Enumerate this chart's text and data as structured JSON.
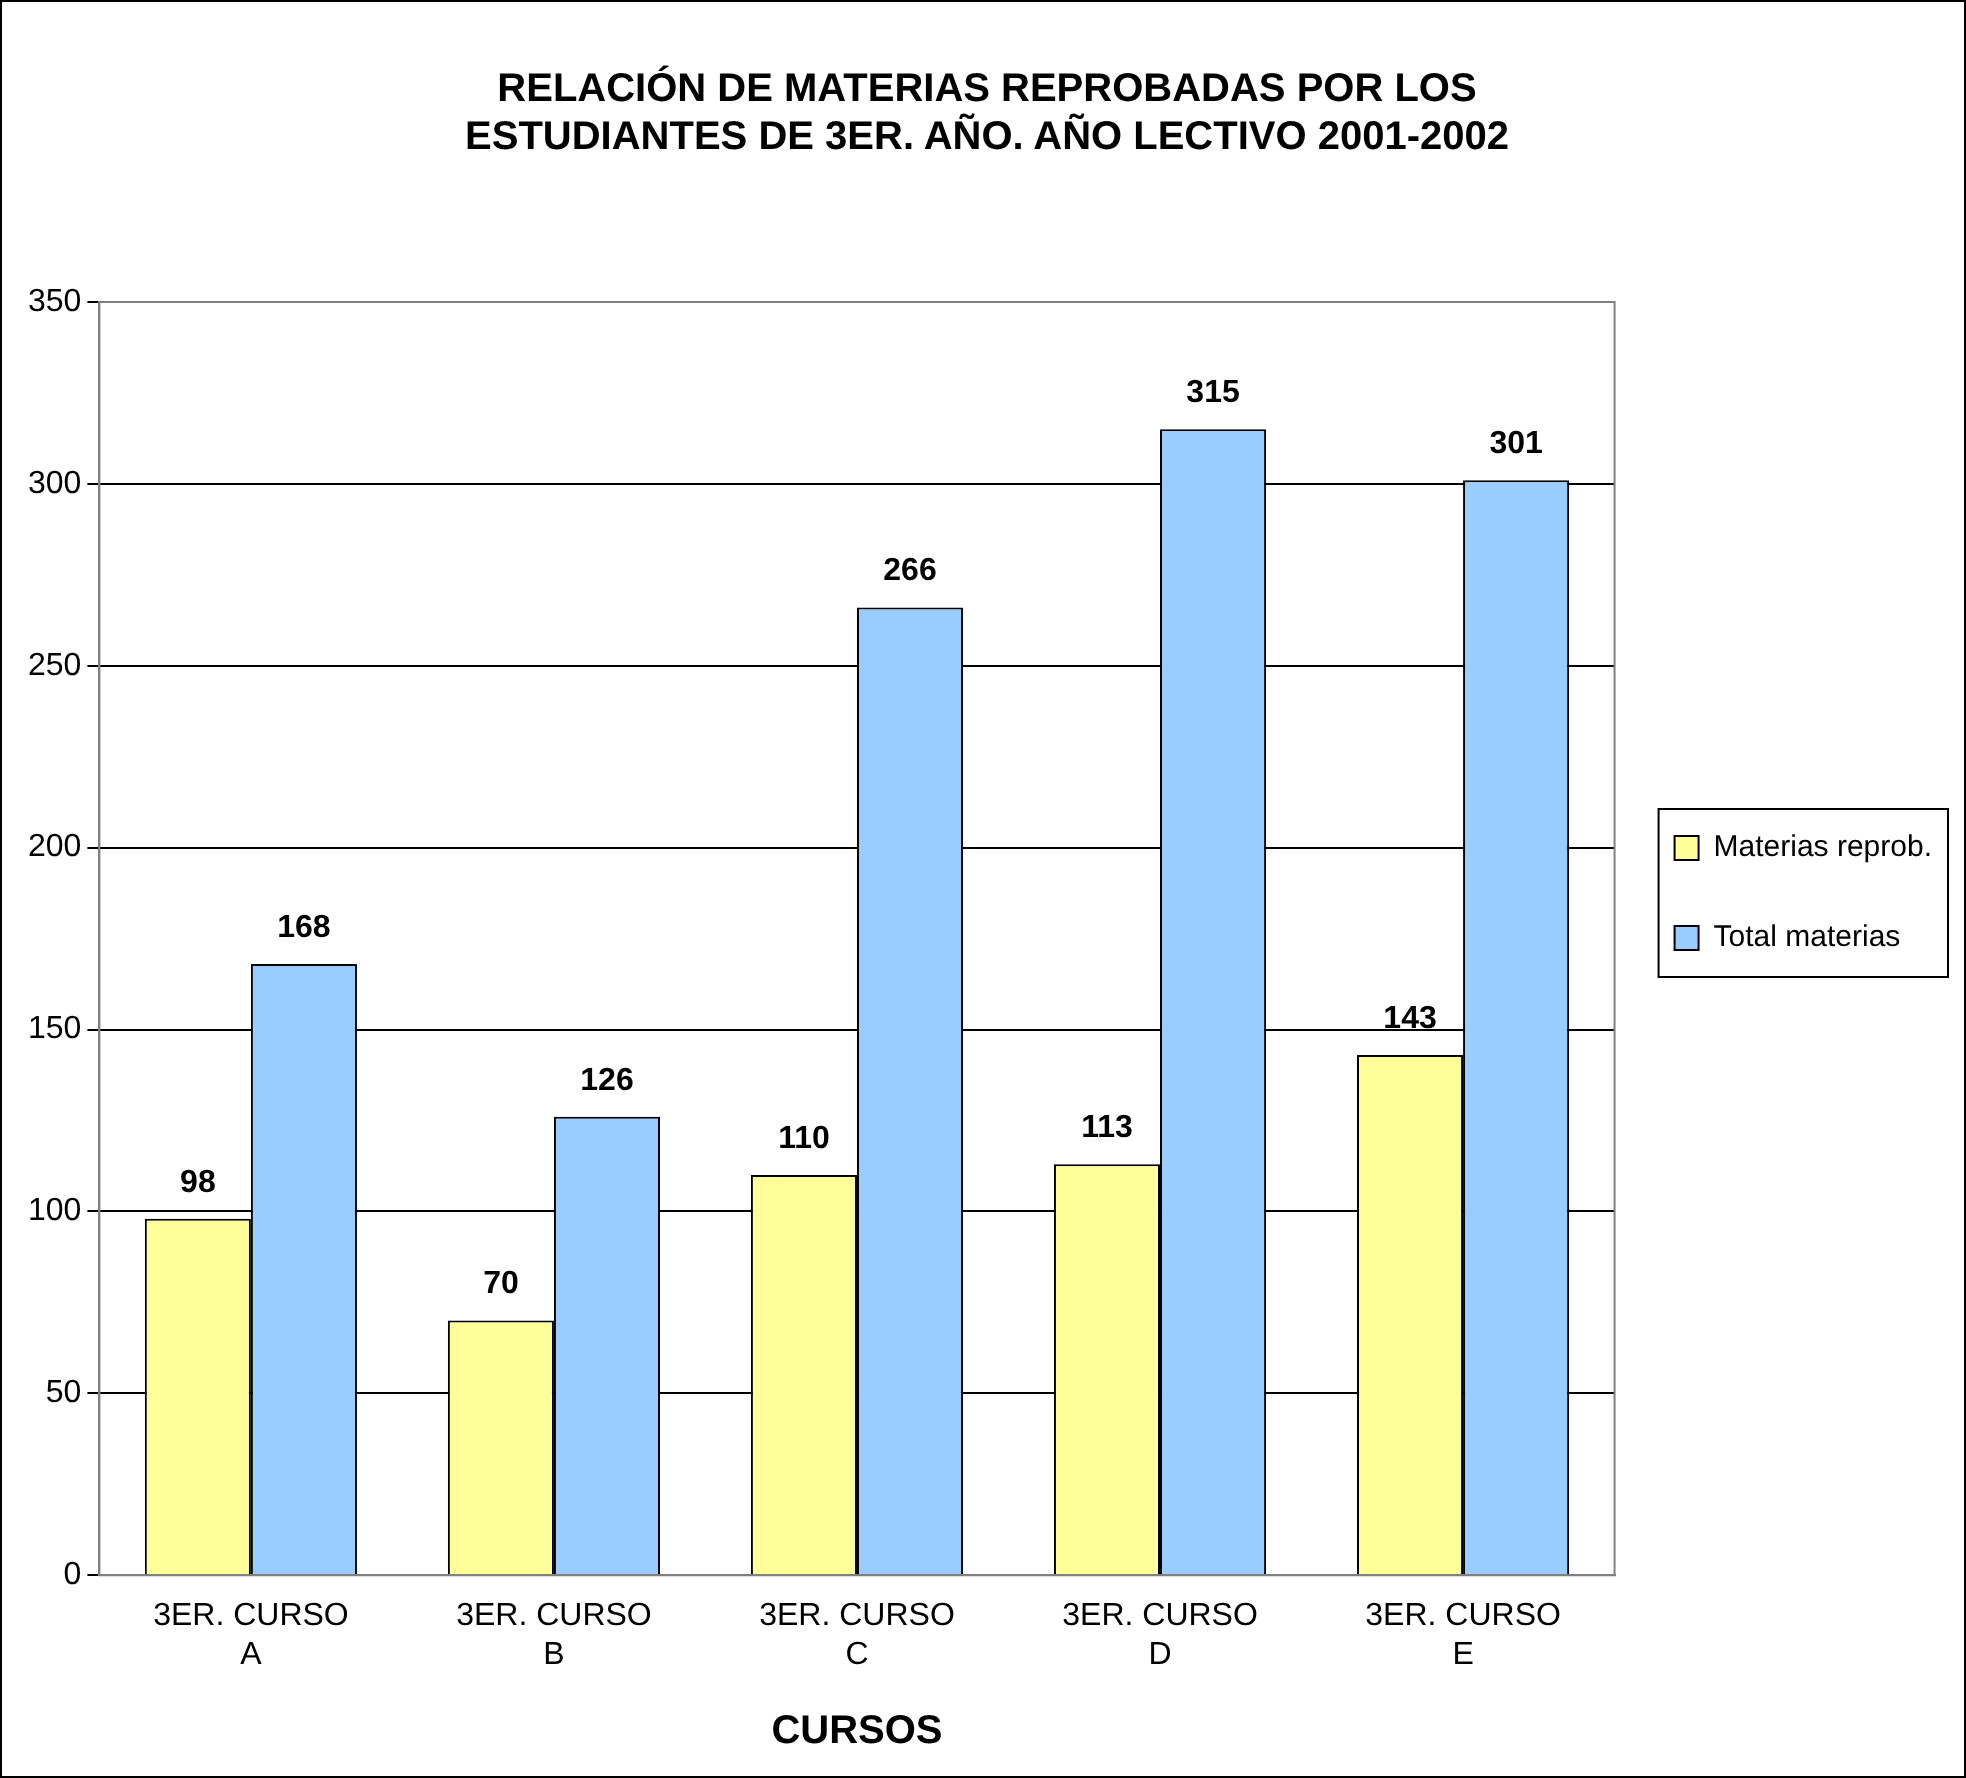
{
  "chart_data": {
    "type": "bar",
    "title": "RELACIÓN DE MATERIAS REPROBADAS POR LOS ESTUDIANTES DE 3ER. AÑO. AÑO LECTIVO 2001-2002",
    "xlabel": "CURSOS",
    "categories": [
      "3ER. CURSO A",
      "3ER. CURSO B",
      "3ER. CURSO C",
      "3ER. CURSO D",
      "3ER. CURSO E"
    ],
    "series": [
      {
        "name": "Materias reprob.",
        "color": "#ffff99",
        "values": [
          98,
          70,
          110,
          113,
          143
        ]
      },
      {
        "name": "Total materias",
        "color": "#99ccff",
        "values": [
          168,
          126,
          266,
          315,
          301
        ]
      }
    ],
    "ylim": [
      0,
      350
    ],
    "yticks": [
      0,
      50,
      100,
      150,
      200,
      250,
      300,
      350
    ],
    "grid": "y",
    "legend": "right",
    "data_labels": true
  }
}
